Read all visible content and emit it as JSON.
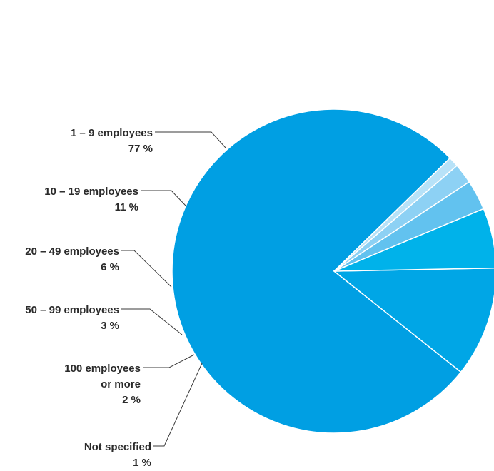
{
  "chart_data": {
    "type": "pie",
    "title": "",
    "slices": [
      {
        "label": [
          "1 – 9 employees"
        ],
        "value_label": "77 %",
        "value": 77,
        "color": "#009fe3"
      },
      {
        "label": [
          "10 – 19 employees"
        ],
        "value_label": "11 %",
        "value": 11,
        "color": "#00a6e6"
      },
      {
        "label": [
          "20 – 49 employees"
        ],
        "value_label": "6 %",
        "value": 6,
        "color": "#00b2ea"
      },
      {
        "label": [
          "50 – 99 employees"
        ],
        "value_label": "3 %",
        "value": 3,
        "color": "#62c2ef"
      },
      {
        "label": [
          "100 employees",
          "or more"
        ],
        "value_label": "2 %",
        "value": 2,
        "color": "#8dd1f4"
      },
      {
        "label": [
          "Not specified"
        ],
        "value_label": "1 %",
        "value": 1,
        "color": "#b7e2f8"
      }
    ]
  }
}
